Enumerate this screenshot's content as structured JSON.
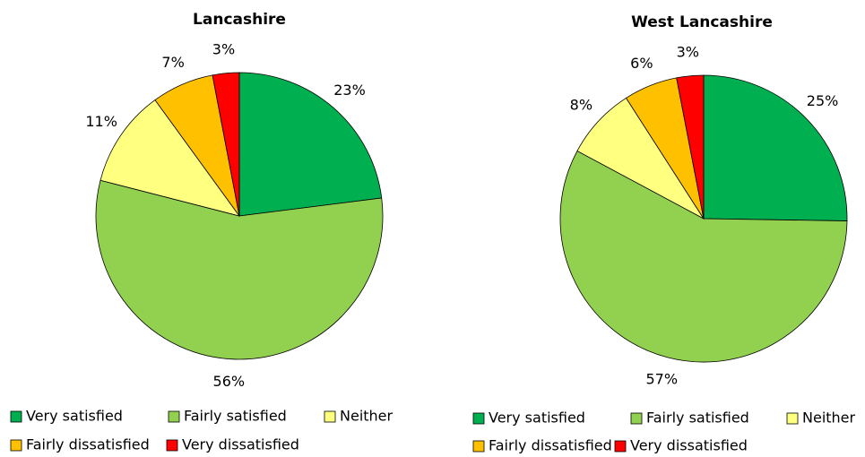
{
  "chart_data": [
    {
      "type": "pie",
      "title": "Lancashire",
      "categories": [
        "Very satisfied",
        "Fairly satisfied",
        "Neither",
        "Fairly dissatisfied",
        "Very dissatisfied"
      ],
      "values": [
        23,
        56,
        11,
        7,
        3
      ],
      "value_labels": [
        "23%",
        "56%",
        "11%",
        "7%",
        "3%"
      ],
      "colors": [
        "#00b050",
        "#92d050",
        "#ffff80",
        "#ffc000",
        "#ff0000"
      ]
    },
    {
      "type": "pie",
      "title": "West Lancashire",
      "categories": [
        "Very satisfied",
        "Fairly satisfied",
        "Neither",
        "Fairly dissatisfied",
        "Very dissatisfied"
      ],
      "values": [
        25,
        57,
        8,
        6,
        3
      ],
      "value_labels": [
        "25%",
        "57%",
        "8%",
        "6%",
        "3%"
      ],
      "colors": [
        "#00b050",
        "#92d050",
        "#ffff80",
        "#ffc000",
        "#ff0000"
      ]
    }
  ]
}
